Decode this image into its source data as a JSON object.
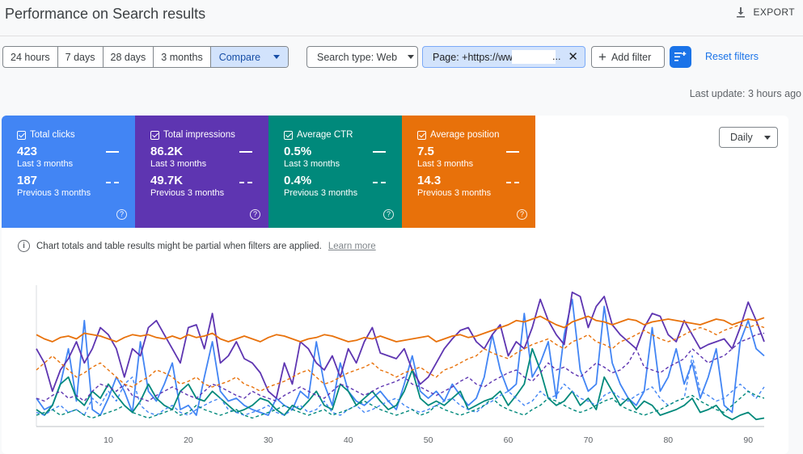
{
  "header": {
    "title": "Performance on Search results",
    "export_label": "EXPORT"
  },
  "date_range": {
    "options": [
      "24 hours",
      "7 days",
      "28 days",
      "3 months"
    ],
    "compare_label": "Compare"
  },
  "filters": {
    "search_type": "Search type: Web",
    "page": "Page: +https://ww",
    "page_ellipsis": "...",
    "add_filter": "Add filter",
    "reset": "Reset filters"
  },
  "last_update": "Last update: 3 hours ago",
  "metrics": [
    {
      "label": "Total clicks",
      "value": "423",
      "period": "Last 3 months",
      "prev_value": "187",
      "prev_period": "Previous 3 months",
      "color": "#4285f4"
    },
    {
      "label": "Total impressions",
      "value": "86.2K",
      "period": "Last 3 months",
      "prev_value": "49.7K",
      "prev_period": "Previous 3 months",
      "color": "#5e35b1"
    },
    {
      "label": "Average CTR",
      "value": "0.5%",
      "period": "Last 3 months",
      "prev_value": "0.4%",
      "prev_period": "Previous 3 months",
      "color": "#00897b"
    },
    {
      "label": "Average position",
      "value": "7.5",
      "period": "Last 3 months",
      "prev_value": "14.3",
      "prev_period": "Previous 3 months",
      "color": "#e8710a"
    }
  ],
  "granularity": "Daily",
  "notice": {
    "text": "Chart totals and table results might be partial when filters are applied.",
    "link": "Learn more"
  },
  "chart_data": {
    "type": "line",
    "x_ticks": [
      10,
      20,
      30,
      40,
      50,
      60,
      70,
      80,
      90
    ],
    "xlim": [
      1,
      92
    ],
    "ylim": [
      0,
      100
    ],
    "series": [
      {
        "color": "#4285f4",
        "style": "solid",
        "values": [
          20,
          12,
          15,
          30,
          55,
          18,
          75,
          12,
          8,
          20,
          35,
          25,
          10,
          60,
          25,
          18,
          30,
          45,
          12,
          15,
          8,
          35,
          60,
          25,
          18,
          20,
          15,
          12,
          10,
          8,
          20,
          15,
          12,
          25,
          20,
          60,
          30,
          15,
          45,
          25,
          18,
          15,
          20,
          25,
          18,
          12,
          30,
          50,
          25,
          20,
          25,
          18,
          30,
          22,
          15,
          20,
          35,
          65,
          40,
          25,
          30,
          80,
          35,
          45,
          60,
          20,
          65,
          90,
          40,
          25,
          30,
          85,
          45,
          30,
          20,
          15,
          25,
          70,
          25,
          35,
          55,
          30,
          45,
          20,
          35,
          55,
          15,
          10,
          60,
          75,
          55,
          50
        ]
      },
      {
        "color": "#5e35b1",
        "style": "solid",
        "values": [
          55,
          45,
          25,
          40,
          48,
          60,
          45,
          55,
          70,
          65,
          55,
          35,
          55,
          50,
          70,
          75,
          65,
          55,
          45,
          70,
          72,
          55,
          80,
          45,
          50,
          60,
          48,
          45,
          38,
          25,
          20,
          45,
          30,
          60,
          55,
          45,
          40,
          50,
          35,
          55,
          45,
          60,
          70,
          52,
          50,
          48,
          55,
          40,
          30,
          35,
          45,
          55,
          62,
          68,
          70,
          60,
          55,
          65,
          72,
          50,
          60,
          55,
          70,
          90,
          75,
          65,
          58,
          95,
          92,
          70,
          85,
          92,
          72,
          65,
          60,
          55,
          70,
          80,
          78,
          65,
          60,
          75,
          65,
          55,
          58,
          60,
          62,
          55,
          70,
          88,
          75,
          60
        ]
      },
      {
        "color": "#00897b",
        "style": "solid",
        "values": [
          12,
          8,
          15,
          30,
          35,
          20,
          15,
          25,
          20,
          30,
          22,
          15,
          10,
          18,
          30,
          20,
          15,
          12,
          25,
          30,
          20,
          18,
          25,
          20,
          15,
          10,
          12,
          15,
          20,
          18,
          12,
          8,
          15,
          12,
          18,
          25,
          15,
          12,
          30,
          25,
          15,
          20,
          25,
          18,
          12,
          15,
          25,
          40,
          20,
          15,
          18,
          15,
          20,
          25,
          12,
          15,
          18,
          20,
          25,
          15,
          22,
          30,
          55,
          40,
          20,
          15,
          18,
          25,
          15,
          20,
          12,
          35,
          25,
          15,
          20,
          12,
          18,
          15,
          8,
          10,
          12,
          15,
          20,
          10,
          12,
          15,
          8,
          5,
          8,
          10,
          5,
          6
        ]
      },
      {
        "color": "#e8710a",
        "style": "solid",
        "values": [
          65,
          62,
          60,
          63,
          64,
          62,
          66,
          65,
          64,
          62,
          60,
          63,
          65,
          64,
          65,
          63,
          62,
          64,
          62,
          65,
          63,
          64,
          66,
          62,
          60,
          62,
          64,
          62,
          60,
          63,
          65,
          64,
          62,
          60,
          62,
          63,
          65,
          64,
          62,
          60,
          61,
          63,
          62,
          64,
          62,
          60,
          61,
          62,
          63,
          64,
          60,
          62,
          64,
          65,
          63,
          64,
          66,
          68,
          70,
          72,
          75,
          74,
          76,
          78,
          75,
          72,
          70,
          74,
          76,
          78,
          75,
          74,
          72,
          74,
          76,
          75,
          72,
          74,
          75,
          76,
          75,
          74,
          73,
          72,
          74,
          76,
          75,
          72,
          74,
          76,
          75,
          77
        ]
      },
      {
        "color": "#4285f4",
        "style": "dashed",
        "values": [
          10,
          8,
          12,
          15,
          10,
          12,
          8,
          20,
          15,
          25,
          18,
          30,
          35,
          15,
          10,
          8,
          12,
          15,
          10,
          8,
          12,
          15,
          18,
          20,
          12,
          10,
          8,
          10,
          12,
          15,
          10,
          8,
          12,
          15,
          10,
          12,
          18,
          10,
          8,
          12,
          15,
          10,
          12,
          15,
          18,
          20,
          15,
          12,
          10,
          12,
          15,
          18,
          20,
          15,
          12,
          10,
          15,
          18,
          22,
          25,
          20,
          15,
          18,
          25,
          20,
          22,
          30,
          25,
          20,
          18,
          15,
          22,
          25,
          20,
          18,
          22,
          25,
          28,
          20,
          15,
          18,
          20,
          50,
          25,
          22,
          18,
          20,
          25,
          30,
          25,
          20,
          28
        ]
      },
      {
        "color": "#5e35b1",
        "style": "dashed",
        "values": [
          20,
          18,
          22,
          25,
          20,
          22,
          18,
          25,
          30,
          28,
          25,
          30,
          22,
          20,
          18,
          22,
          25,
          28,
          25,
          22,
          20,
          25,
          30,
          28,
          25,
          22,
          20,
          25,
          22,
          20,
          18,
          22,
          25,
          28,
          25,
          22,
          20,
          25,
          30,
          28,
          25,
          22,
          25,
          28,
          30,
          32,
          35,
          30,
          28,
          25,
          22,
          25,
          28,
          32,
          35,
          30,
          28,
          32,
          35,
          38,
          40,
          35,
          32,
          38,
          45,
          40,
          42,
          38,
          35,
          40,
          45,
          42,
          38,
          40,
          45,
          55,
          42,
          40,
          38,
          42,
          45,
          48,
          55,
          50,
          45,
          48,
          50,
          55,
          60,
          62,
          65,
          66
        ]
      },
      {
        "color": "#00897b",
        "style": "dashed",
        "values": [
          8,
          10,
          12,
          8,
          10,
          12,
          8,
          6,
          8,
          10,
          12,
          15,
          10,
          8,
          6,
          8,
          10,
          12,
          8,
          10,
          15,
          12,
          10,
          8,
          10,
          12,
          8,
          6,
          8,
          10,
          12,
          15,
          12,
          10,
          8,
          10,
          12,
          8,
          10,
          12,
          15,
          18,
          15,
          12,
          10,
          8,
          10,
          12,
          8,
          10,
          15,
          12,
          10,
          8,
          10,
          12,
          15,
          20,
          15,
          12,
          10,
          8,
          12,
          15,
          20,
          18,
          15,
          12,
          10,
          12,
          15,
          18,
          20,
          15,
          12,
          10,
          8,
          10,
          12,
          15,
          18,
          20,
          22,
          18,
          15,
          12,
          10,
          15,
          20,
          25,
          22,
          20
        ]
      },
      {
        "color": "#e8710a",
        "style": "dashed",
        "values": [
          40,
          45,
          50,
          45,
          40,
          35,
          38,
          42,
          45,
          40,
          35,
          30,
          28,
          32,
          35,
          40,
          38,
          35,
          30,
          32,
          35,
          30,
          28,
          30,
          32,
          35,
          30,
          28,
          25,
          28,
          30,
          32,
          35,
          38,
          40,
          35,
          30,
          32,
          35,
          38,
          40,
          42,
          45,
          40,
          38,
          35,
          38,
          40,
          42,
          38,
          35,
          40,
          42,
          45,
          48,
          50,
          55,
          52,
          50,
          48,
          52,
          55,
          58,
          60,
          62,
          58,
          55,
          60,
          62,
          65,
          60,
          58,
          55,
          60,
          62,
          65,
          68,
          65,
          62,
          60,
          62,
          65,
          68,
          70,
          68,
          65,
          68,
          70,
          72,
          70,
          72,
          70
        ]
      }
    ]
  }
}
